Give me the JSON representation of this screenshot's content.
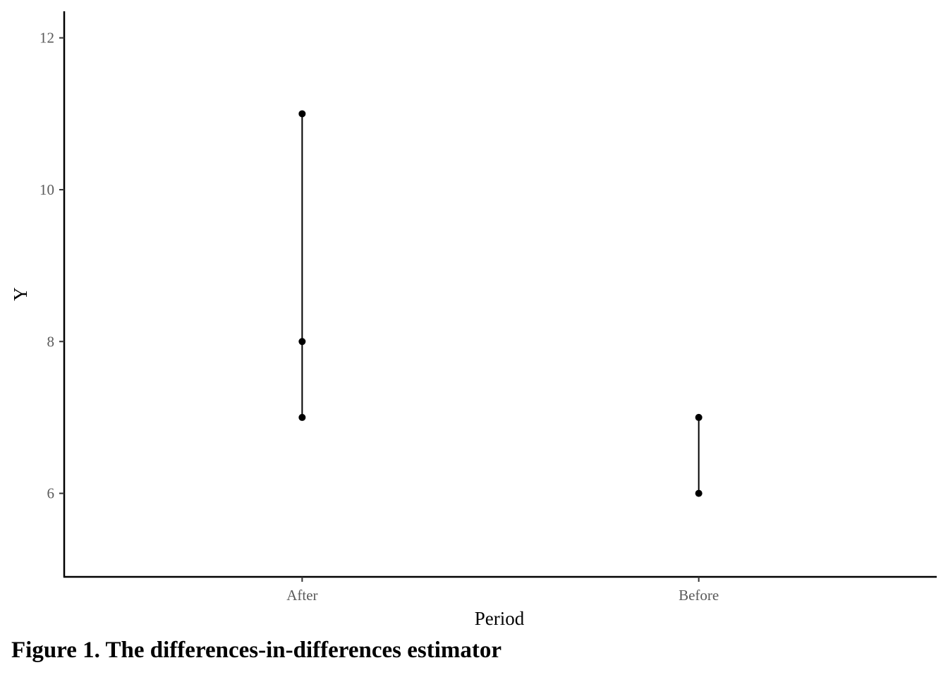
{
  "chart_data": {
    "type": "scatter",
    "xlabel": "Period",
    "ylabel": "Y",
    "categories": [
      "After",
      "Before"
    ],
    "yticks": [
      6,
      8,
      10,
      12
    ],
    "ylim": [
      4.9,
      12.35
    ],
    "points": [
      {
        "x": "After",
        "y": 7
      },
      {
        "x": "After",
        "y": 8
      },
      {
        "x": "After",
        "y": 11
      },
      {
        "x": "Before",
        "y": 6
      },
      {
        "x": "Before",
        "y": 7
      }
    ],
    "segments": [
      {
        "x": "After",
        "y_from": 7,
        "y_to": 11
      },
      {
        "x": "Before",
        "y_from": 6,
        "y_to": 7
      }
    ],
    "grid": false,
    "legend": "none",
    "colors": {
      "marks": "#000000",
      "tick_text": "#5a5a5a"
    }
  },
  "caption": "Figure 1. The differences-in-differences estimator"
}
